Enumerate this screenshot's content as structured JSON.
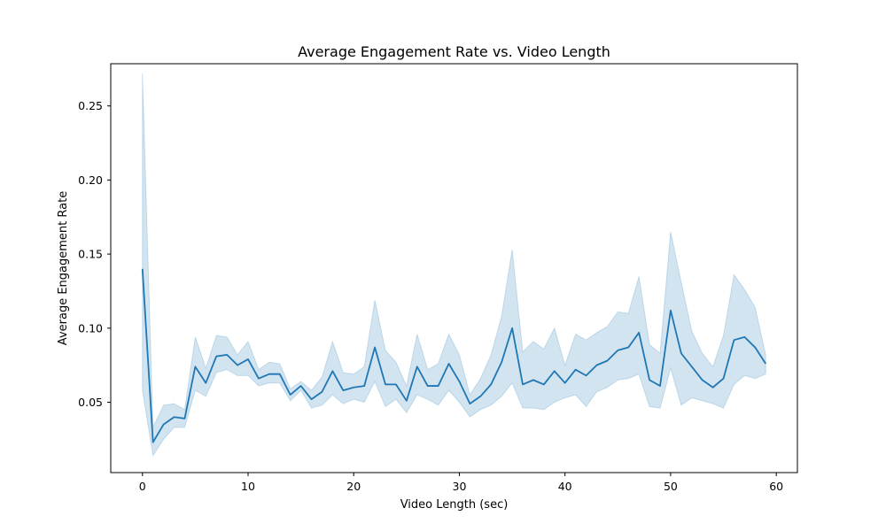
{
  "chart_data": {
    "type": "line",
    "title": "Average Engagement Rate vs. Video Length",
    "xlabel": "Video Length (sec)",
    "ylabel": "Average Engagement Rate",
    "xlim": [
      -3,
      62
    ],
    "ylim": [
      0.0025,
      0.2785
    ],
    "xticks": [
      0,
      10,
      20,
      30,
      40,
      50,
      60
    ],
    "yticks": [
      0.05,
      0.1,
      0.15,
      0.2,
      0.25
    ],
    "ytick_labels": [
      "0.05",
      "0.10",
      "0.15",
      "0.20",
      "0.25"
    ],
    "grid": false,
    "series_color": "#1f77b4",
    "band_color": "#1f77b4",
    "band_opacity": 0.2,
    "series": [
      {
        "x": [
          0,
          1,
          2,
          3,
          4,
          5,
          6,
          7,
          8,
          9,
          10,
          11,
          12,
          13,
          14,
          15,
          16,
          17,
          18,
          19,
          20,
          21,
          22,
          23,
          24,
          25,
          26,
          27,
          28,
          29,
          30,
          31,
          32,
          33,
          34,
          35,
          36,
          37,
          38,
          39,
          40,
          41,
          42,
          43,
          44,
          45,
          46,
          47,
          48,
          49,
          50,
          51,
          52,
          53,
          54,
          55,
          56,
          57,
          58,
          59
        ],
        "values": [
          0.14,
          0.023,
          0.035,
          0.04,
          0.039,
          0.074,
          0.063,
          0.081,
          0.082,
          0.075,
          0.079,
          0.066,
          0.069,
          0.069,
          0.055,
          0.061,
          0.052,
          0.057,
          0.071,
          0.058,
          0.06,
          0.061,
          0.087,
          0.062,
          0.062,
          0.051,
          0.074,
          0.061,
          0.061,
          0.076,
          0.064,
          0.049,
          0.054,
          0.062,
          0.077,
          0.1,
          0.062,
          0.065,
          0.062,
          0.071,
          0.063,
          0.072,
          0.068,
          0.075,
          0.078,
          0.085,
          0.087,
          0.097,
          0.065,
          0.061,
          0.112,
          0.083,
          0.074,
          0.065,
          0.06,
          0.066,
          0.092,
          0.094,
          0.087,
          0.076
        ],
        "ci_lower": [
          0.058,
          0.014,
          0.025,
          0.033,
          0.033,
          0.058,
          0.054,
          0.07,
          0.072,
          0.068,
          0.068,
          0.061,
          0.063,
          0.063,
          0.051,
          0.058,
          0.046,
          0.048,
          0.055,
          0.049,
          0.052,
          0.05,
          0.064,
          0.047,
          0.052,
          0.043,
          0.055,
          0.052,
          0.048,
          0.058,
          0.05,
          0.04,
          0.045,
          0.048,
          0.054,
          0.063,
          0.046,
          0.046,
          0.045,
          0.05,
          0.053,
          0.055,
          0.047,
          0.057,
          0.06,
          0.065,
          0.066,
          0.069,
          0.047,
          0.046,
          0.073,
          0.048,
          0.053,
          0.051,
          0.049,
          0.046,
          0.062,
          0.068,
          0.066,
          0.069
        ],
        "ci_upper": [
          0.272,
          0.033,
          0.048,
          0.049,
          0.045,
          0.094,
          0.073,
          0.095,
          0.094,
          0.082,
          0.091,
          0.072,
          0.077,
          0.076,
          0.059,
          0.064,
          0.058,
          0.067,
          0.091,
          0.07,
          0.069,
          0.074,
          0.119,
          0.085,
          0.077,
          0.061,
          0.096,
          0.072,
          0.076,
          0.096,
          0.082,
          0.055,
          0.066,
          0.082,
          0.108,
          0.153,
          0.084,
          0.091,
          0.086,
          0.1,
          0.075,
          0.096,
          0.092,
          0.097,
          0.101,
          0.111,
          0.11,
          0.135,
          0.089,
          0.083,
          0.165,
          0.131,
          0.098,
          0.083,
          0.074,
          0.095,
          0.136,
          0.126,
          0.114,
          0.082
        ]
      }
    ]
  }
}
